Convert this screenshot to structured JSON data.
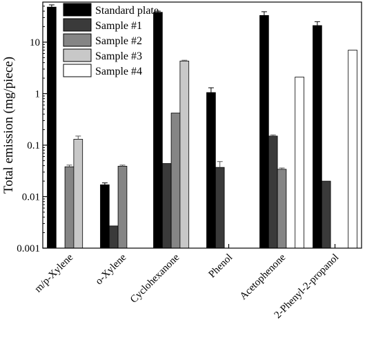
{
  "chart_data": {
    "type": "bar",
    "ylabel": "Total emission (mg/piece)",
    "xlabel": "",
    "yscale": "log",
    "ylim": [
      0.001,
      60
    ],
    "yticks": [
      {
        "value": 0.001,
        "label": "0.001"
      },
      {
        "value": 0.01,
        "label": "0.01"
      },
      {
        "value": 0.1,
        "label": "0.1"
      },
      {
        "value": 1,
        "label": "1"
      },
      {
        "value": 10,
        "label": "10"
      }
    ],
    "categories": [
      "m/p-Xylene",
      "o-Xylene",
      "Cyclohexanone",
      "Phenol",
      "Acetophenone",
      "2-Phenyl-2-propanol"
    ],
    "legend_position": "top-left",
    "series": [
      {
        "name": "Standard plate",
        "color": "#000000",
        "values": [
          48,
          0.017,
          38,
          1.05,
          33,
          21
        ],
        "errors": [
          5,
          0.0015,
          2,
          0.25,
          6,
          4
        ]
      },
      {
        "name": "Sample #1",
        "color": "#3a3a3a",
        "values": [
          null,
          0.0027,
          0.044,
          0.037,
          0.15,
          0.02
        ],
        "errors": [
          null,
          0,
          0,
          0.011,
          0.008,
          0
        ]
      },
      {
        "name": "Sample #2",
        "color": "#858585",
        "values": [
          0.038,
          0.039,
          0.42,
          null,
          0.034,
          null
        ],
        "errors": [
          0.003,
          0.002,
          0,
          null,
          0.002,
          null
        ]
      },
      {
        "name": "Sample #3",
        "color": "#c8c8c8",
        "values": [
          0.13,
          null,
          4.3,
          null,
          null,
          null
        ],
        "errors": [
          0.02,
          null,
          0.15,
          null,
          null,
          null
        ]
      },
      {
        "name": "Sample #4",
        "color": "#ffffff",
        "values": [
          null,
          null,
          null,
          null,
          2.1,
          7.0
        ],
        "errors": [
          null,
          null,
          null,
          null,
          0,
          0
        ]
      }
    ]
  }
}
